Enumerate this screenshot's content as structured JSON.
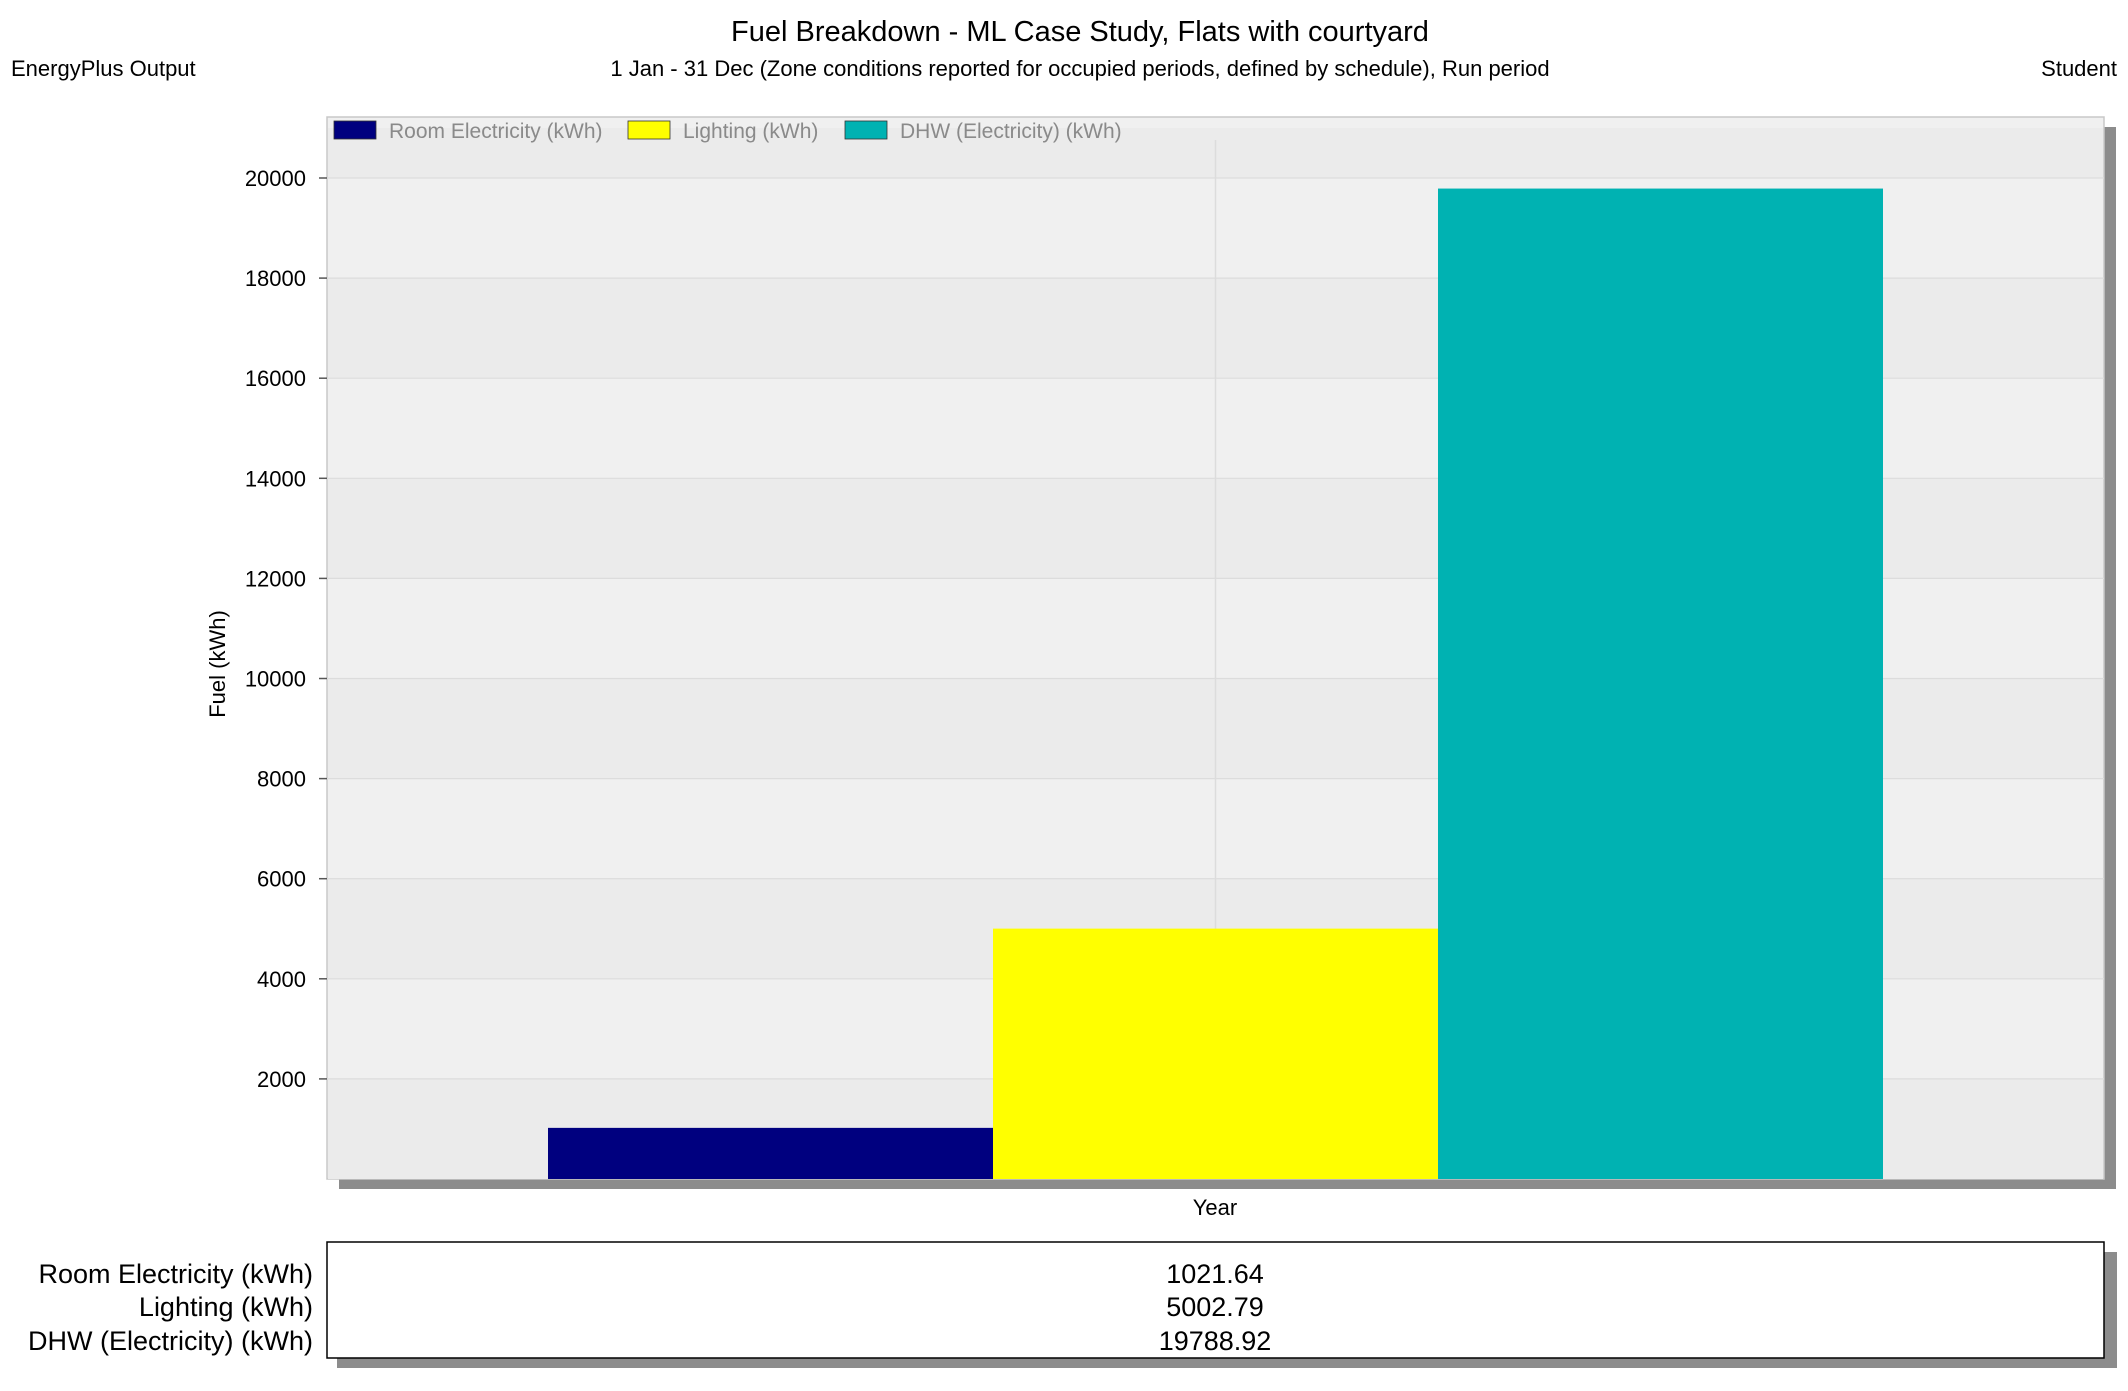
{
  "header": {
    "title": "Fuel Breakdown - ML Case Study, Flats with courtyard",
    "left_label": "EnergyPlus Output",
    "subtitle": "1 Jan - 31 Dec (Zone conditions reported for occupied periods, defined by schedule), Run period",
    "right_label": "Student"
  },
  "chart_data": {
    "type": "bar",
    "categories": [
      "Year"
    ],
    "series": [
      {
        "name": "Room Electricity (kWh)",
        "values": [
          1021.64
        ],
        "color": "#00007f"
      },
      {
        "name": "Lighting (kWh)",
        "values": [
          5002.79
        ],
        "color": "#ffff00"
      },
      {
        "name": "DHW (Electricity) (kWh)",
        "values": [
          19788.92
        ],
        "color": "#00b2b2"
      }
    ],
    "xlabel": "Year",
    "ylabel": "Fuel (kWh)",
    "ylim": [
      0,
      21000
    ],
    "yticks": [
      2000,
      4000,
      6000,
      8000,
      10000,
      12000,
      14000,
      16000,
      18000,
      20000
    ],
    "grid": true,
    "legend_position": "top-left"
  },
  "table": {
    "rows": [
      {
        "label": "Room Electricity (kWh)",
        "value": "1021.64"
      },
      {
        "label": "Lighting (kWh)",
        "value": "5002.79"
      },
      {
        "label": "DHW (Electricity) (kWh)",
        "value": "19788.92"
      }
    ]
  }
}
